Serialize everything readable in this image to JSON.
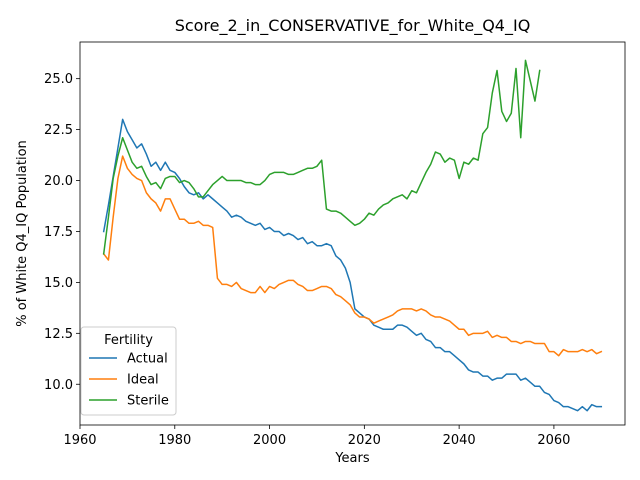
{
  "chart_data": {
    "type": "line",
    "title": "Score_2_in_CONSERVATIVE_for_White_Q4_IQ",
    "xlabel": "Years",
    "ylabel": "% of White Q4_IQ Population",
    "xlim": [
      1960,
      2075
    ],
    "ylim": [
      8.0,
      26.8
    ],
    "xticks": [
      1960,
      1980,
      2000,
      2020,
      2040,
      2060
    ],
    "yticks": [
      10.0,
      12.5,
      15.0,
      17.5,
      20.0,
      22.5,
      25.0
    ],
    "ytick_labels": [
      "10.0",
      "12.5",
      "15.0",
      "17.5",
      "20.0",
      "22.5",
      "25.0"
    ],
    "grid": false,
    "legend": {
      "title": "Fertility",
      "placement": "lower-left"
    },
    "series": [
      {
        "name": "Actual",
        "color": "#1f77b4",
        "x": [
          1965,
          1966,
          1967,
          1968,
          1969,
          1970,
          1971,
          1972,
          1973,
          1974,
          1975,
          1976,
          1977,
          1978,
          1979,
          1980,
          1981,
          1982,
          1983,
          1984,
          1985,
          1986,
          1987,
          1988,
          1989,
          1990,
          1991,
          1992,
          1993,
          1994,
          1995,
          1996,
          1997,
          1998,
          1999,
          2000,
          2001,
          2002,
          2003,
          2004,
          2005,
          2006,
          2007,
          2008,
          2009,
          2010,
          2011,
          2012,
          2013,
          2014,
          2015,
          2016,
          2017,
          2018,
          2019,
          2020,
          2021,
          2022,
          2023,
          2024,
          2025,
          2026,
          2027,
          2028,
          2029,
          2030,
          2031,
          2032,
          2033,
          2034,
          2035,
          2036,
          2037,
          2038,
          2039,
          2040,
          2041,
          2042,
          2043,
          2044,
          2045,
          2046,
          2047,
          2048,
          2049,
          2050,
          2051,
          2052,
          2053,
          2054,
          2055,
          2056,
          2057,
          2058,
          2059,
          2060,
          2061,
          2062,
          2063,
          2064,
          2065,
          2066,
          2067,
          2068,
          2069,
          2070
        ],
        "values": [
          17.5,
          18.8,
          20.2,
          21.6,
          23.0,
          22.4,
          22.0,
          21.6,
          21.8,
          21.3,
          20.7,
          20.9,
          20.5,
          20.9,
          20.5,
          20.4,
          20.1,
          19.7,
          19.4,
          19.3,
          19.4,
          19.1,
          19.3,
          19.1,
          18.9,
          18.7,
          18.5,
          18.2,
          18.3,
          18.2,
          18.0,
          17.9,
          17.8,
          17.9,
          17.6,
          17.7,
          17.5,
          17.5,
          17.3,
          17.4,
          17.3,
          17.1,
          17.2,
          16.9,
          17.0,
          16.8,
          16.8,
          16.9,
          16.8,
          16.3,
          16.1,
          15.7,
          15.0,
          13.7,
          13.5,
          13.3,
          13.2,
          12.9,
          12.8,
          12.7,
          12.7,
          12.7,
          12.9,
          12.9,
          12.8,
          12.6,
          12.4,
          12.5,
          12.2,
          12.1,
          11.8,
          11.8,
          11.6,
          11.6,
          11.4,
          11.2,
          11.0,
          10.7,
          10.6,
          10.6,
          10.4,
          10.4,
          10.2,
          10.3,
          10.3,
          10.5,
          10.5,
          10.5,
          10.2,
          10.3,
          10.1,
          9.9,
          9.9,
          9.6,
          9.5,
          9.2,
          9.1,
          8.9,
          8.9,
          8.8,
          8.7,
          8.9,
          8.7,
          9.0,
          8.9,
          8.9
        ]
      },
      {
        "name": "Ideal",
        "color": "#ff7f0e",
        "x": [
          1965,
          1966,
          1967,
          1968,
          1969,
          1970,
          1971,
          1972,
          1973,
          1974,
          1975,
          1976,
          1977,
          1978,
          1979,
          1980,
          1981,
          1982,
          1983,
          1984,
          1985,
          1986,
          1987,
          1988,
          1989,
          1990,
          1991,
          1992,
          1993,
          1994,
          1995,
          1996,
          1997,
          1998,
          1999,
          2000,
          2001,
          2002,
          2003,
          2004,
          2005,
          2006,
          2007,
          2008,
          2009,
          2010,
          2011,
          2012,
          2013,
          2014,
          2015,
          2016,
          2017,
          2018,
          2019,
          2020,
          2021,
          2022,
          2023,
          2024,
          2025,
          2026,
          2027,
          2028,
          2029,
          2030,
          2031,
          2032,
          2033,
          2034,
          2035,
          2036,
          2037,
          2038,
          2039,
          2040,
          2041,
          2042,
          2043,
          2044,
          2045,
          2046,
          2047,
          2048,
          2049,
          2050,
          2051,
          2052,
          2053,
          2054,
          2055,
          2056,
          2057,
          2058,
          2059,
          2060,
          2061,
          2062,
          2063,
          2064,
          2065,
          2066,
          2067,
          2068,
          2069,
          2070
        ],
        "values": [
          16.4,
          16.1,
          18.2,
          20.1,
          21.2,
          20.6,
          20.3,
          20.1,
          20.0,
          19.4,
          19.1,
          18.9,
          18.5,
          19.1,
          19.1,
          18.6,
          18.1,
          18.1,
          17.9,
          17.9,
          18.0,
          17.8,
          17.8,
          17.7,
          15.2,
          14.9,
          14.9,
          14.8,
          15.0,
          14.7,
          14.6,
          14.5,
          14.5,
          14.8,
          14.5,
          14.8,
          14.7,
          14.9,
          15.0,
          15.1,
          15.1,
          14.9,
          14.8,
          14.6,
          14.6,
          14.7,
          14.8,
          14.8,
          14.7,
          14.4,
          14.3,
          14.1,
          13.9,
          13.5,
          13.3,
          13.3,
          13.2,
          13.0,
          13.1,
          13.2,
          13.3,
          13.4,
          13.6,
          13.7,
          13.7,
          13.7,
          13.6,
          13.7,
          13.6,
          13.4,
          13.3,
          13.3,
          13.2,
          13.1,
          12.9,
          12.7,
          12.7,
          12.4,
          12.5,
          12.5,
          12.5,
          12.6,
          12.3,
          12.4,
          12.3,
          12.3,
          12.1,
          12.1,
          12.0,
          12.1,
          12.1,
          12.0,
          12.0,
          12.0,
          11.6,
          11.6,
          11.4,
          11.7,
          11.6,
          11.6,
          11.6,
          11.7,
          11.6,
          11.7,
          11.5,
          11.6
        ]
      },
      {
        "name": "Sterile",
        "color": "#2ca02c",
        "x": [
          1965,
          1966,
          1967,
          1968,
          1969,
          1970,
          1971,
          1972,
          1973,
          1974,
          1975,
          1976,
          1977,
          1978,
          1979,
          1980,
          1981,
          1982,
          1983,
          1984,
          1985,
          1986,
          1987,
          1988,
          1989,
          1990,
          1991,
          1992,
          1993,
          1994,
          1995,
          1996,
          1997,
          1998,
          1999,
          2000,
          2001,
          2002,
          2003,
          2004,
          2005,
          2006,
          2007,
          2008,
          2009,
          2010,
          2011,
          2012,
          2013,
          2014,
          2015,
          2016,
          2017,
          2018,
          2019,
          2020,
          2021,
          2022,
          2023,
          2024,
          2025,
          2026,
          2027,
          2028,
          2029,
          2030,
          2031,
          2032,
          2033,
          2034,
          2035,
          2036,
          2037,
          2038,
          2039,
          2040,
          2041,
          2042,
          2043,
          2044,
          2045,
          2046,
          2047,
          2048,
          2049,
          2050,
          2051,
          2052,
          2053,
          2054,
          2055,
          2056,
          2057
        ],
        "values": [
          16.4,
          18.2,
          20.1,
          21.2,
          22.1,
          21.5,
          20.9,
          20.6,
          20.7,
          20.2,
          19.8,
          19.9,
          19.6,
          20.1,
          20.2,
          20.2,
          19.9,
          20.0,
          19.9,
          19.6,
          19.2,
          19.2,
          19.5,
          19.8,
          20.0,
          20.2,
          20.0,
          20.0,
          20.0,
          20.0,
          19.9,
          19.9,
          19.8,
          19.8,
          20.0,
          20.3,
          20.4,
          20.4,
          20.4,
          20.3,
          20.3,
          20.4,
          20.5,
          20.6,
          20.6,
          20.7,
          21.0,
          18.6,
          18.5,
          18.5,
          18.4,
          18.2,
          18.0,
          17.8,
          17.9,
          18.1,
          18.4,
          18.3,
          18.6,
          18.8,
          18.9,
          19.1,
          19.2,
          19.3,
          19.1,
          19.5,
          19.4,
          19.9,
          20.4,
          20.8,
          21.4,
          21.3,
          20.9,
          21.1,
          21.0,
          20.1,
          20.9,
          20.8,
          21.1,
          21.0,
          22.3,
          22.6,
          24.3,
          25.4,
          23.4,
          22.9,
          23.3,
          25.5,
          22.1,
          25.9,
          24.9,
          23.9,
          25.4
        ]
      }
    ]
  }
}
